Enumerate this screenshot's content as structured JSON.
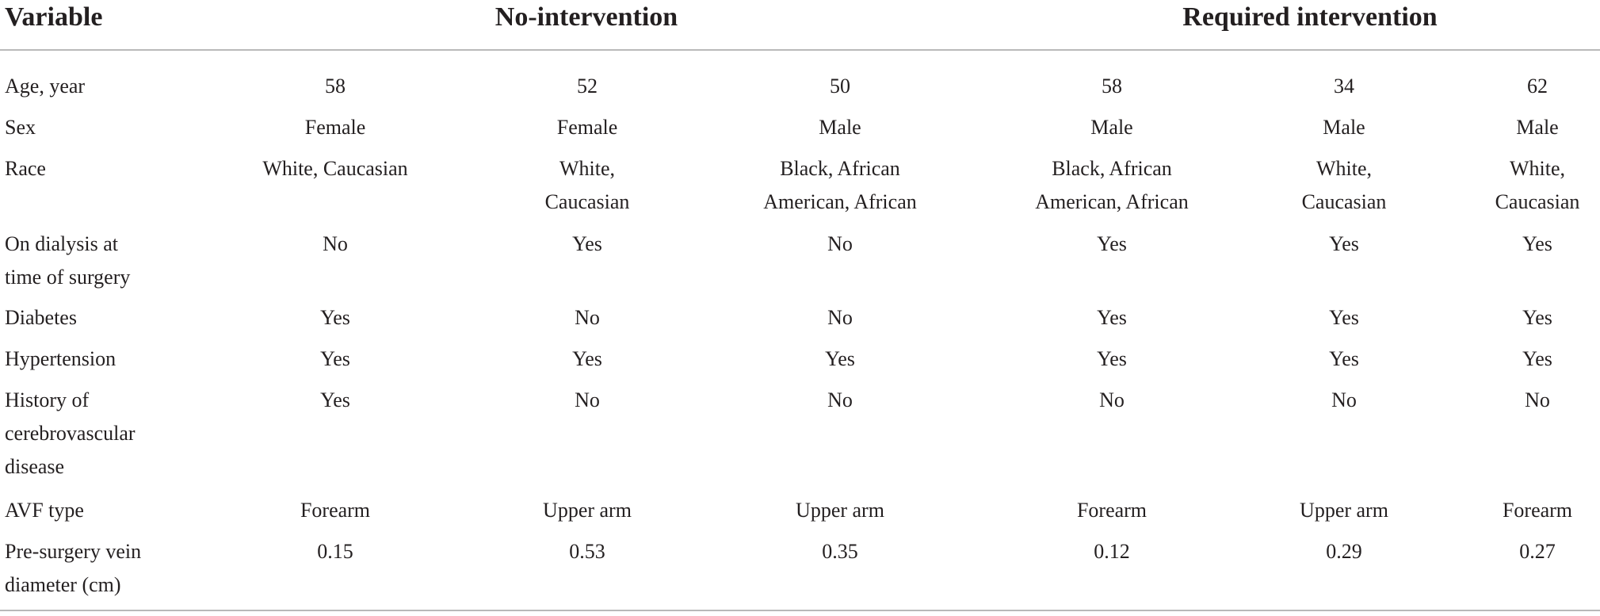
{
  "table": {
    "header": {
      "variable": "Variable",
      "no_intervention": "No-intervention",
      "required_intervention": "Required intervention"
    },
    "rows": [
      {
        "label": [
          "Age, year"
        ],
        "values": [
          [
            "58"
          ],
          [
            "52"
          ],
          [
            "50"
          ],
          [
            "58"
          ],
          [
            "34"
          ],
          [
            "62"
          ]
        ]
      },
      {
        "label": [
          "Sex"
        ],
        "values": [
          [
            "Female"
          ],
          [
            "Female"
          ],
          [
            "Male"
          ],
          [
            "Male"
          ],
          [
            "Male"
          ],
          [
            "Male"
          ]
        ]
      },
      {
        "label": [
          "Race"
        ],
        "values": [
          [
            "White, Caucasian"
          ],
          [
            "White,",
            "Caucasian"
          ],
          [
            "Black, African",
            "American, African"
          ],
          [
            "Black, African",
            "American, African"
          ],
          [
            "White,",
            "Caucasian"
          ],
          [
            "White,",
            "Caucasian"
          ]
        ]
      },
      {
        "label": [
          "On dialysis at",
          "time of surgery"
        ],
        "values": [
          [
            "No"
          ],
          [
            "Yes"
          ],
          [
            "No"
          ],
          [
            "Yes"
          ],
          [
            "Yes"
          ],
          [
            "Yes"
          ]
        ]
      },
      {
        "label": [
          "Diabetes"
        ],
        "values": [
          [
            "Yes"
          ],
          [
            "No"
          ],
          [
            "No"
          ],
          [
            "Yes"
          ],
          [
            "Yes"
          ],
          [
            "Yes"
          ]
        ]
      },
      {
        "label": [
          "Hypertension"
        ],
        "values": [
          [
            "Yes"
          ],
          [
            "Yes"
          ],
          [
            "Yes"
          ],
          [
            "Yes"
          ],
          [
            "Yes"
          ],
          [
            "Yes"
          ]
        ]
      },
      {
        "label": [
          "History of",
          "cerebrovascular",
          "disease"
        ],
        "values": [
          [
            "Yes"
          ],
          [
            "No"
          ],
          [
            "No"
          ],
          [
            "No"
          ],
          [
            "No"
          ],
          [
            "No"
          ]
        ]
      },
      {
        "label": [
          "AVF type"
        ],
        "values": [
          [
            "Forearm"
          ],
          [
            "Upper arm"
          ],
          [
            "Upper arm"
          ],
          [
            "Forearm"
          ],
          [
            "Upper arm"
          ],
          [
            "Forearm"
          ]
        ]
      },
      {
        "label": [
          "Pre-surgery vein",
          "diameter (cm)"
        ],
        "values": [
          [
            "0.15"
          ],
          [
            "0.53"
          ],
          [
            "0.35"
          ],
          [
            "0.12"
          ],
          [
            "0.29"
          ],
          [
            "0.27"
          ]
        ]
      }
    ]
  }
}
